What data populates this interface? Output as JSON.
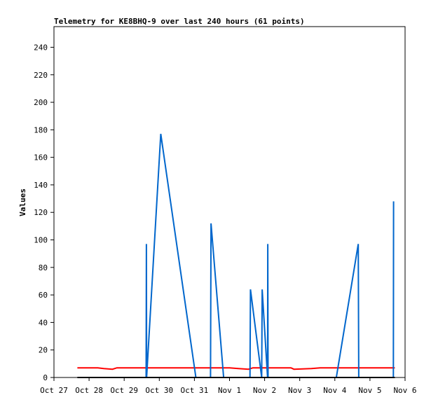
{
  "chart_data": {
    "type": "line",
    "title": "Telemetry for KE8BHQ-9 over last 240 hours (61 points)",
    "xlabel": "",
    "ylabel": "Values",
    "ylim": [
      0,
      255
    ],
    "xlim": [
      "2023-10-27",
      "2023-11-06"
    ],
    "yticks": [
      0,
      20,
      40,
      60,
      80,
      100,
      120,
      140,
      160,
      180,
      200,
      220,
      240
    ],
    "xticks": [
      {
        "date": "2023-10-27",
        "label": "Oct 27"
      },
      {
        "date": "2023-10-28",
        "label": "Oct 28"
      },
      {
        "date": "2023-10-29",
        "label": "Oct 29"
      },
      {
        "date": "2023-10-30",
        "label": "Oct 30"
      },
      {
        "date": "2023-10-31",
        "label": "Oct 31"
      },
      {
        "date": "2023-11-01",
        "label": "Nov 1"
      },
      {
        "date": "2023-11-02",
        "label": "Nov 2"
      },
      {
        "date": "2023-11-03",
        "label": "Nov 3"
      },
      {
        "date": "2023-11-04",
        "label": "Nov 4"
      },
      {
        "date": "2023-11-05",
        "label": "Nov 5"
      },
      {
        "date": "2023-11-06",
        "label": "Nov 6"
      }
    ],
    "grid": false,
    "legend": "none",
    "series": [
      {
        "color": "#ff0000",
        "points": [
          [
            "2023-10-27 16:00",
            7
          ],
          [
            "2023-10-28 06:00",
            7
          ],
          [
            "2023-10-28 10:00",
            6.5
          ],
          [
            "2023-10-28 16:00",
            6
          ],
          [
            "2023-10-28 19:00",
            7
          ],
          [
            "2023-10-29 12:00",
            7
          ],
          [
            "2023-10-30 06:00",
            7
          ],
          [
            "2023-10-31 06:00",
            7
          ],
          [
            "2023-11-01 00:00",
            7
          ],
          [
            "2023-11-01 06:00",
            6.5
          ],
          [
            "2023-11-01 13:00",
            6
          ],
          [
            "2023-11-01 16:00",
            7
          ],
          [
            "2023-11-02 04:00",
            7
          ],
          [
            "2023-11-02 18:00",
            7
          ],
          [
            "2023-11-02 20:00",
            6
          ],
          [
            "2023-11-03 08:00",
            6.5
          ],
          [
            "2023-11-03 14:00",
            7
          ],
          [
            "2023-11-04 12:00",
            7
          ],
          [
            "2023-11-05 12:00",
            7
          ],
          [
            "2023-11-05 17:00",
            7
          ]
        ]
      },
      {
        "color": "#0066cc",
        "points": [
          [
            "2023-10-29 15:00",
            0
          ],
          [
            "2023-10-29 15:10",
            97
          ],
          [
            "2023-10-29 15:20",
            0
          ],
          [
            "2023-10-30 01:00",
            177
          ],
          [
            "2023-10-31 01:00",
            0
          ],
          [
            "2023-10-31 11:00",
            0
          ],
          [
            "2023-10-31 11:20",
            112
          ],
          [
            "2023-10-31 20:00",
            0
          ],
          [
            "2023-11-01 14:00",
            0
          ],
          [
            "2023-11-01 14:20",
            64
          ],
          [
            "2023-11-01 22:00",
            0
          ],
          [
            "2023-11-01 22:20",
            64
          ],
          [
            "2023-11-02 02:00",
            0
          ],
          [
            "2023-11-02 02:10",
            97
          ],
          [
            "2023-11-02 02:20",
            0
          ],
          [
            "2023-11-04 01:00",
            0
          ],
          [
            "2023-11-04 16:00",
            97
          ],
          [
            "2023-11-04 16:20",
            0
          ],
          [
            "2023-11-05 16:00",
            0
          ],
          [
            "2023-11-05 16:10",
            128
          ]
        ]
      },
      {
        "color": "#000000",
        "points": [
          [
            "2023-10-27 16:00",
            0
          ],
          [
            "2023-11-05 17:00",
            0
          ]
        ]
      }
    ]
  }
}
